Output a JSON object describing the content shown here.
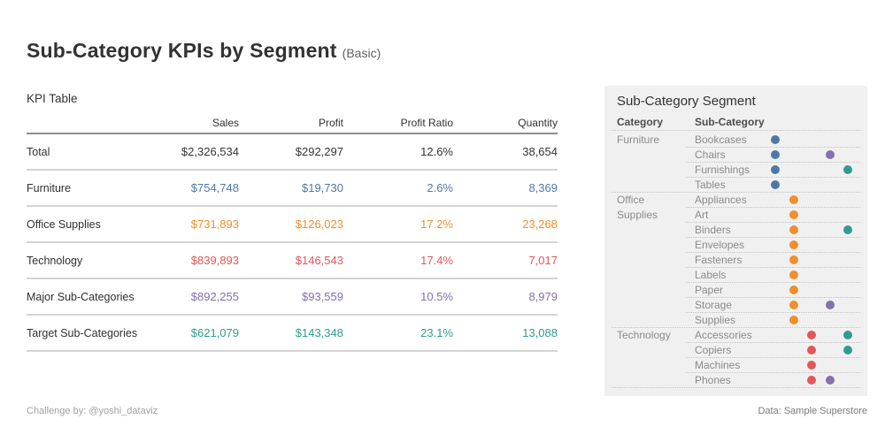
{
  "header": {
    "title": "Sub-Category KPIs by Segment",
    "subtitle": "(Basic)"
  },
  "footer": {
    "left": "Challenge by: @yoshi_dataviz",
    "right": "Data: Sample Superstore"
  },
  "chart_data": [
    {
      "type": "table",
      "title": "KPI Table",
      "columns": [
        "Sales",
        "Profit",
        "Profit Ratio",
        "Quantity"
      ],
      "rows": [
        {
          "label": "Total",
          "values": [
            "$2,326,534",
            "$292,297",
            "12.6%",
            "38,654"
          ],
          "color": "#343434"
        },
        {
          "label": "Furniture",
          "values": [
            "$754,748",
            "$19,730",
            "2.6%",
            "8,369"
          ],
          "color": "#4e79a7"
        },
        {
          "label": "Office Supplies",
          "values": [
            "$731,893",
            "$126,023",
            "17.2%",
            "23,268"
          ],
          "color": "#f28e2b"
        },
        {
          "label": "Technology",
          "values": [
            "$839,893",
            "$146,543",
            "17.4%",
            "7,017"
          ],
          "color": "#e15759"
        },
        {
          "label": "Major Sub-Categories",
          "values": [
            "$892,255",
            "$93,559",
            "10.5%",
            "8,979"
          ],
          "color": "#8470ab"
        },
        {
          "label": "Target Sub-Categories",
          "values": [
            "$621,079",
            "$143,348",
            "23.1%",
            "13,088"
          ],
          "color": "#2f9c8e"
        }
      ]
    },
    {
      "type": "scatter",
      "title": "Sub-Category Segment",
      "columns": [
        "Category",
        "Sub-Category"
      ],
      "x_categories": [
        "Furniture",
        "Office Supplies",
        "Technology",
        "Major Sub-Categories",
        "Target Sub-Categories"
      ],
      "series": [
        {
          "key": "furniture",
          "label": "Furniture",
          "color": "#4e79a7"
        },
        {
          "key": "office",
          "label": "Office Supplies",
          "color": "#f28e2b"
        },
        {
          "key": "technology",
          "label": "Technology",
          "color": "#e15759"
        },
        {
          "key": "major",
          "label": "Major Sub-Categories",
          "color": "#8470ab"
        },
        {
          "key": "target",
          "label": "Target Sub-Categories",
          "color": "#2f9c8e"
        }
      ],
      "rows": [
        {
          "category": "Furniture",
          "category_label": "Furniture",
          "sub": "Bookcases",
          "dots": [
            "furniture"
          ],
          "group_start": true
        },
        {
          "category": "Furniture",
          "category_label": "",
          "sub": "Chairs",
          "dots": [
            "furniture",
            "major"
          ]
        },
        {
          "category": "Furniture",
          "category_label": "",
          "sub": "Furnishings",
          "dots": [
            "furniture",
            "target"
          ]
        },
        {
          "category": "Furniture",
          "category_label": "",
          "sub": "Tables",
          "dots": [
            "furniture"
          ]
        },
        {
          "category": "Office Supplies",
          "category_label": "Office",
          "sub": "Appliances",
          "dots": [
            "office"
          ],
          "group_start": true
        },
        {
          "category": "Office Supplies",
          "category_label": "Supplies",
          "sub": "Art",
          "dots": [
            "office"
          ]
        },
        {
          "category": "Office Supplies",
          "category_label": "",
          "sub": "Binders",
          "dots": [
            "office",
            "target"
          ]
        },
        {
          "category": "Office Supplies",
          "category_label": "",
          "sub": "Envelopes",
          "dots": [
            "office"
          ]
        },
        {
          "category": "Office Supplies",
          "category_label": "",
          "sub": "Fasteners",
          "dots": [
            "office"
          ]
        },
        {
          "category": "Office Supplies",
          "category_label": "",
          "sub": "Labels",
          "dots": [
            "office"
          ]
        },
        {
          "category": "Office Supplies",
          "category_label": "",
          "sub": "Paper",
          "dots": [
            "office"
          ]
        },
        {
          "category": "Office Supplies",
          "category_label": "",
          "sub": "Storage",
          "dots": [
            "office",
            "major"
          ]
        },
        {
          "category": "Office Supplies",
          "category_label": "",
          "sub": "Supplies",
          "dots": [
            "office"
          ]
        },
        {
          "category": "Technology",
          "category_label": "Technology",
          "sub": "Accessories",
          "dots": [
            "technology",
            "target"
          ],
          "group_start": true
        },
        {
          "category": "Technology",
          "category_label": "",
          "sub": "Copiers",
          "dots": [
            "technology",
            "target"
          ]
        },
        {
          "category": "Technology",
          "category_label": "",
          "sub": "Machines",
          "dots": [
            "technology"
          ]
        },
        {
          "category": "Technology",
          "category_label": "",
          "sub": "Phones",
          "dots": [
            "technology",
            "major"
          ]
        }
      ]
    }
  ]
}
